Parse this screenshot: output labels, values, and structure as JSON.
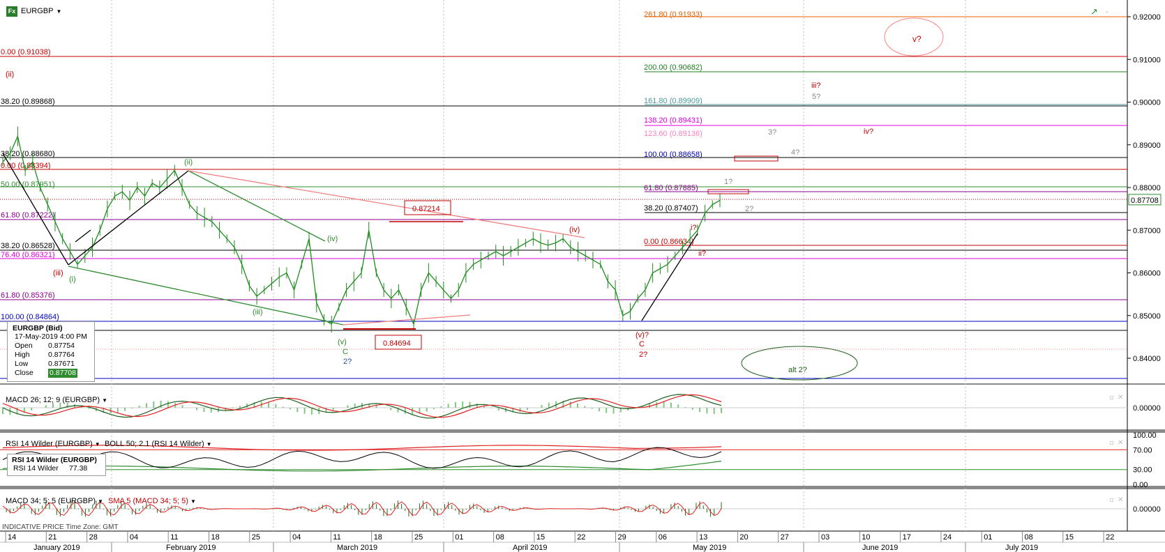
{
  "app": {
    "symbol": "EURGBP",
    "icon_text": "Fx",
    "dropdown_icon": "chevron-down-icon"
  },
  "footer": {
    "text": "INDICATIVE PRICE   Time Zone: GMT"
  },
  "info": {
    "title": "EURGBP (Bid)",
    "date": "17-May-2019 4:00 PM",
    "rows": [
      {
        "k": "Open",
        "v": "0.87754"
      },
      {
        "k": "High",
        "v": "0.87764"
      },
      {
        "k": "Low",
        "v": "0.87671"
      },
      {
        "k": "Close",
        "v": "0.87708"
      }
    ]
  },
  "panes": {
    "macd1": {
      "title": "MACD 26; 12; 9 (EURGBP)",
      "tick": "0.00000"
    },
    "rsi": {
      "title1": "RSI 14 Wilder (EURGBP)",
      "title2": "BOLL 50; 2.1 (RSI 14 Wilder)",
      "box_title": "RSI 14 Wilder (EURGBP)",
      "box_label": "RSI 14 Wilder",
      "box_value": "77.38",
      "ticks": [
        "100.00",
        "70.00",
        "30.00",
        "0.00"
      ]
    },
    "macd2": {
      "title1": "MACD 34; 5; 5 (EURGBP)",
      "title2": "SMA 5 (MACD 34; 5; 5)",
      "tick": "0.00000"
    }
  },
  "chart_data": {
    "type": "line",
    "title": "EURGBP",
    "y_range": [
      0.833,
      0.925
    ],
    "price_ticks": [
      "0.92000",
      "0.91000",
      "0.90000",
      "0.89000",
      "0.88000",
      "0.87000",
      "0.86000",
      "0.85000",
      "0.84000"
    ],
    "last_price": "0.87708",
    "x_day_ticks": [
      "14",
      "21",
      "28",
      "04",
      "11",
      "18",
      "25",
      "04",
      "11",
      "18",
      "25",
      "01",
      "08",
      "15",
      "22",
      "29",
      "06",
      "13",
      "20",
      "27",
      "03",
      "10",
      "17",
      "24",
      "01",
      "08",
      "15",
      "22"
    ],
    "x_month_ticks": [
      "January 2019",
      "February 2019",
      "March 2019",
      "April 2019",
      "May 2019",
      "June 2019",
      "July 2019"
    ],
    "price_series": [
      0.886,
      0.888,
      0.892,
      0.884,
      0.886,
      0.88,
      0.876,
      0.872,
      0.868,
      0.865,
      0.862,
      0.864,
      0.866,
      0.87,
      0.875,
      0.878,
      0.879,
      0.877,
      0.88,
      0.878,
      0.881,
      0.88,
      0.882,
      0.884,
      0.88,
      0.876,
      0.874,
      0.873,
      0.872,
      0.87,
      0.868,
      0.866,
      0.862,
      0.857,
      0.8545,
      0.856,
      0.8575,
      0.859,
      0.86,
      0.856,
      0.862,
      0.868,
      0.853,
      0.849,
      0.848,
      0.852,
      0.856,
      0.858,
      0.86,
      0.87,
      0.86,
      0.856,
      0.854,
      0.856,
      0.852,
      0.848,
      0.856,
      0.86,
      0.858,
      0.856,
      0.854,
      0.856,
      0.86,
      0.862,
      0.863,
      0.864,
      0.865,
      0.864,
      0.865,
      0.866,
      0.867,
      0.868,
      0.867,
      0.8665,
      0.867,
      0.868,
      0.866,
      0.865,
      0.864,
      0.863,
      0.862,
      0.858,
      0.856,
      0.85,
      0.851,
      0.854,
      0.856,
      0.86,
      0.861,
      0.862,
      0.864,
      0.866,
      0.868,
      0.87,
      0.874,
      0.876,
      0.877
    ],
    "annotations": [
      {
        "text": "(ii)",
        "color": "#c00000"
      },
      {
        "text": "(iii)",
        "color": "#c00000"
      },
      {
        "text": "(i)",
        "color": "#2e8b2e"
      },
      {
        "text": "(ii)",
        "color": "#2e8b2e"
      },
      {
        "text": "(iii)",
        "color": "#2e8b2e"
      },
      {
        "text": "(iv)",
        "color": "#2e8b2e"
      },
      {
        "text": "(v)",
        "color": "#2e8b2e"
      },
      {
        "text": "C",
        "color": "#2e8b2e"
      },
      {
        "text": "2?",
        "color": "#1f4f9c"
      },
      {
        "text": "(iv)",
        "color": "#c00000"
      },
      {
        "text": "(v)?",
        "color": "#c00000"
      },
      {
        "text": "C",
        "color": "#c00000"
      },
      {
        "text": "2?",
        "color": "#c00000"
      },
      {
        "text": "i?",
        "color": "#c00000"
      },
      {
        "text": "ii?",
        "color": "#c00000"
      },
      {
        "text": "iii?",
        "color": "#c00000"
      },
      {
        "text": "iv?",
        "color": "#c00000"
      },
      {
        "text": "v?",
        "color": "#c00000"
      },
      {
        "text": "1?",
        "color": "#888888"
      },
      {
        "text": "2?",
        "color": "#888888"
      },
      {
        "text": "3?",
        "color": "#888888"
      },
      {
        "text": "4?",
        "color": "#888888"
      },
      {
        "text": "5?",
        "color": "#888888"
      },
      {
        "text": "alt 2?",
        "color": "#1e5e1e"
      }
    ],
    "price_boxes": [
      "0.87214",
      "0.84694"
    ],
    "left_levels": [
      {
        "text": "0.00 (0.91038)",
        "color": "#c00000"
      },
      {
        "text": "38.20 (0.89868)",
        "color": "#000000"
      },
      {
        "text": "38.20 (0.88680)",
        "color": "#000000"
      },
      {
        "text": "0.00 (0.88394)",
        "color": "#c00000"
      },
      {
        "text": "50.00 (0.87951)",
        "color": "#2e8b2e"
      },
      {
        "text": "61.80 (0.87222)",
        "color": "#8b008b"
      },
      {
        "text": "38.20 (0.86528)",
        "color": "#000000"
      },
      {
        "text": "76.40 (0.86321)",
        "color": "#e000e0"
      },
      {
        "text": "61.80 (0.85376)",
        "color": "#8b008b"
      },
      {
        "text": "100.00 (0.84864)",
        "color": "#0000c0"
      }
    ],
    "right_levels": [
      {
        "text": "261.80 (0.91933)",
        "color": "#e06000"
      },
      {
        "text": "200.00 (0.90682)",
        "color": "#1e7e1e"
      },
      {
        "text": "161.80 (0.89909)",
        "color": "#4a9a9a"
      },
      {
        "text": "138.20 (0.89431)",
        "color": "#e000e0"
      },
      {
        "text": "123.60 (0.89136)",
        "color": "#ff7fbf"
      },
      {
        "text": "100.00 (0.88658)",
        "color": "#0000c0"
      },
      {
        "text": "61.80 (0.87885)",
        "color": "#8b008b"
      },
      {
        "text": "38.20 (0.87407)",
        "color": "#000000"
      },
      {
        "text": "0.00 (0.86634)",
        "color": "#c00000"
      }
    ]
  }
}
